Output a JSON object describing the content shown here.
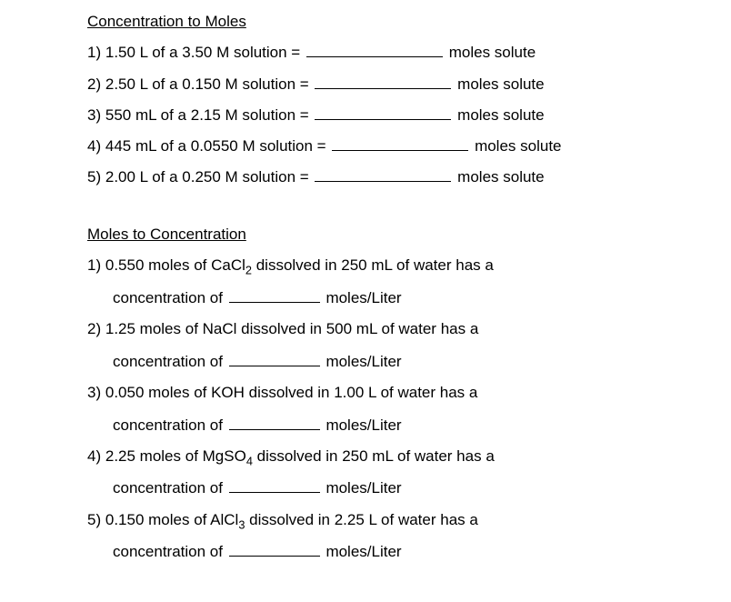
{
  "section1": {
    "heading": "Concentration to Moles",
    "suffix": "moles solute",
    "questions": [
      {
        "num": "1)",
        "text": "1.50 L of a 3.50 M solution ="
      },
      {
        "num": "2)",
        "text": "2.50 L of a 0.150 M solution ="
      },
      {
        "num": "3)",
        "text": "550 mL of a 2.15 M solution ="
      },
      {
        "num": "4)",
        "text": "445 mL of a 0.0550 M solution ="
      },
      {
        "num": "5)",
        "text": "2.00 L of a 0.250 M solution ="
      }
    ]
  },
  "section2": {
    "heading": "Moles to Concentration",
    "conc_label": "concentration of",
    "unit": "moles/Liter",
    "questions": [
      {
        "num": "1)",
        "before": "0.550 moles of CaCl",
        "sub": "2",
        "after": " dissolved in 250 mL of water has a"
      },
      {
        "num": "2)",
        "before": "1.25 moles of NaCl dissolved in 500 mL of water has a",
        "sub": "",
        "after": ""
      },
      {
        "num": "3)",
        "before": "0.050 moles of KOH dissolved in 1.00 L of water has a",
        "sub": "",
        "after": ""
      },
      {
        "num": "4)",
        "before": "2.25 moles of MgSO",
        "sub": "4",
        "after": " dissolved in 250 mL of water has a"
      },
      {
        "num": "5)",
        "before": "0.150 moles of AlCl",
        "sub": "3",
        "after": " dissolved in 2.25 L of water has a"
      }
    ]
  }
}
